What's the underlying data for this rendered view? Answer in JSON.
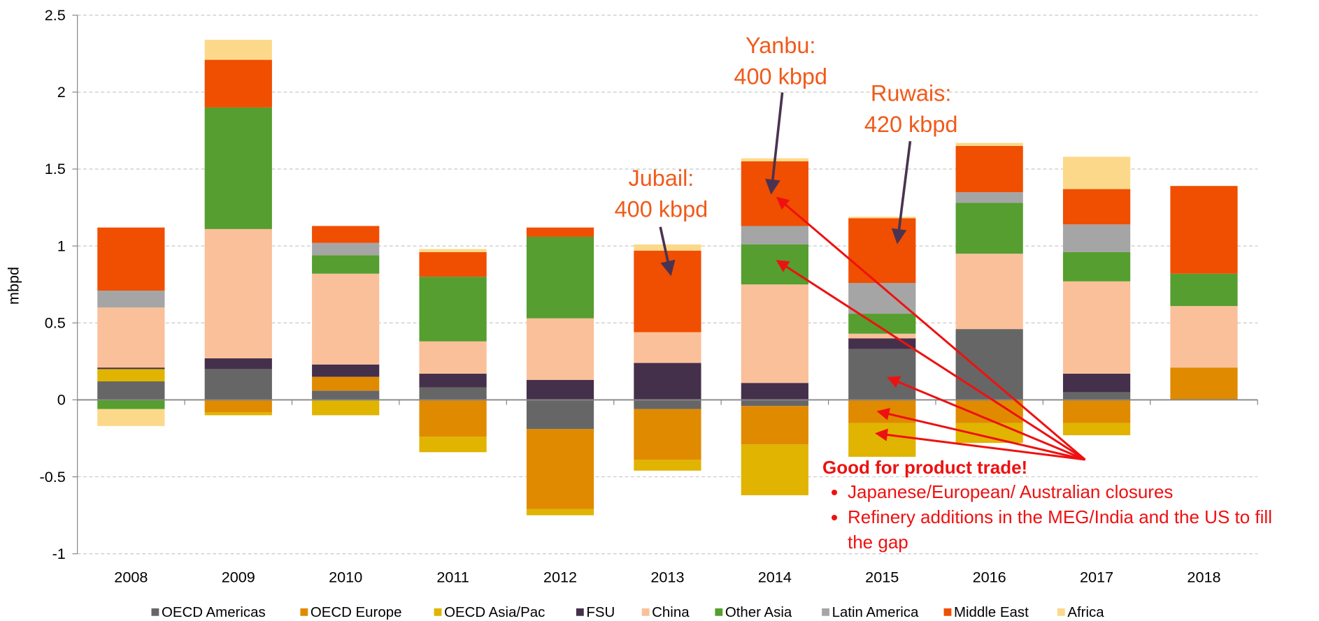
{
  "chart_data": {
    "type": "stacked_bar",
    "ylabel": "mbpd",
    "categories": [
      "2008",
      "2009",
      "2010",
      "2011",
      "2012",
      "2013",
      "2014",
      "2015",
      "2016",
      "2017",
      "2018"
    ],
    "series": [
      {
        "name": "OECD Americas",
        "color": "#666666",
        "values": [
          0.12,
          0.2,
          0.06,
          0.08,
          -0.19,
          -0.06,
          -0.04,
          0.33,
          0.46,
          0.05,
          0
        ]
      },
      {
        "name": "OECD Europe",
        "color": "#e08a00",
        "values": [
          0,
          -0.08,
          0.09,
          -0.24,
          -0.52,
          -0.33,
          -0.25,
          -0.15,
          -0.15,
          -0.15,
          0.21
        ]
      },
      {
        "name": "OECD Asia/Pac",
        "color": "#e0b400",
        "values": [
          0.08,
          -0.02,
          -0.1,
          -0.1,
          -0.04,
          -0.07,
          -0.33,
          -0.22,
          -0.13,
          -0.08,
          0
        ]
      },
      {
        "name": "FSU",
        "color": "#45304b",
        "values": [
          0.01,
          0.07,
          0.08,
          0.09,
          0.13,
          0.24,
          0.11,
          0.07,
          0,
          0.12,
          0
        ]
      },
      {
        "name": "China",
        "color": "#fac09a",
        "values": [
          0.39,
          0.84,
          0.59,
          0.21,
          0.4,
          0.2,
          0.64,
          0.03,
          0.49,
          0.6,
          0.4
        ]
      },
      {
        "name": "Other Asia",
        "color": "#559e2f",
        "values": [
          -0.06,
          0.79,
          0.12,
          0.42,
          0.53,
          0,
          0.26,
          0.13,
          0.33,
          0.19,
          0.21
        ]
      },
      {
        "name": "Latin America",
        "color": "#a5a5a5",
        "values": [
          0.11,
          0,
          0.08,
          0,
          0,
          0,
          0.12,
          0.2,
          0.07,
          0.18,
          0
        ]
      },
      {
        "name": "Middle East",
        "color": "#f04e00",
        "values": [
          0.41,
          0.31,
          0.11,
          0.16,
          0.06,
          0.53,
          0.42,
          0.42,
          0.3,
          0.23,
          0.57
        ]
      },
      {
        "name": "Africa",
        "color": "#fcd98a",
        "values": [
          -0.11,
          0.13,
          0,
          0.02,
          0,
          0.04,
          0.02,
          0.01,
          0.02,
          0.21,
          0
        ]
      }
    ],
    "ylim": [
      -1,
      2.5
    ],
    "yticks": [
      -1,
      -0.5,
      0,
      0.5,
      1,
      1.5,
      2,
      2.5
    ],
    "grid": true,
    "legend": "bottom",
    "annotations": [
      {
        "text": [
          "Yanbu:",
          "400 kbpd"
        ]
      },
      {
        "text": [
          "Ruwais:",
          "420 kbpd"
        ]
      },
      {
        "text": [
          "Jubail:",
          "400 kbpd"
        ]
      }
    ],
    "callout": {
      "title": "Good for product trade!",
      "bullets": [
        "Japanese/European/ Australian closures",
        "Refinery additions in the MEG/India and the US to fill the gap"
      ]
    }
  }
}
